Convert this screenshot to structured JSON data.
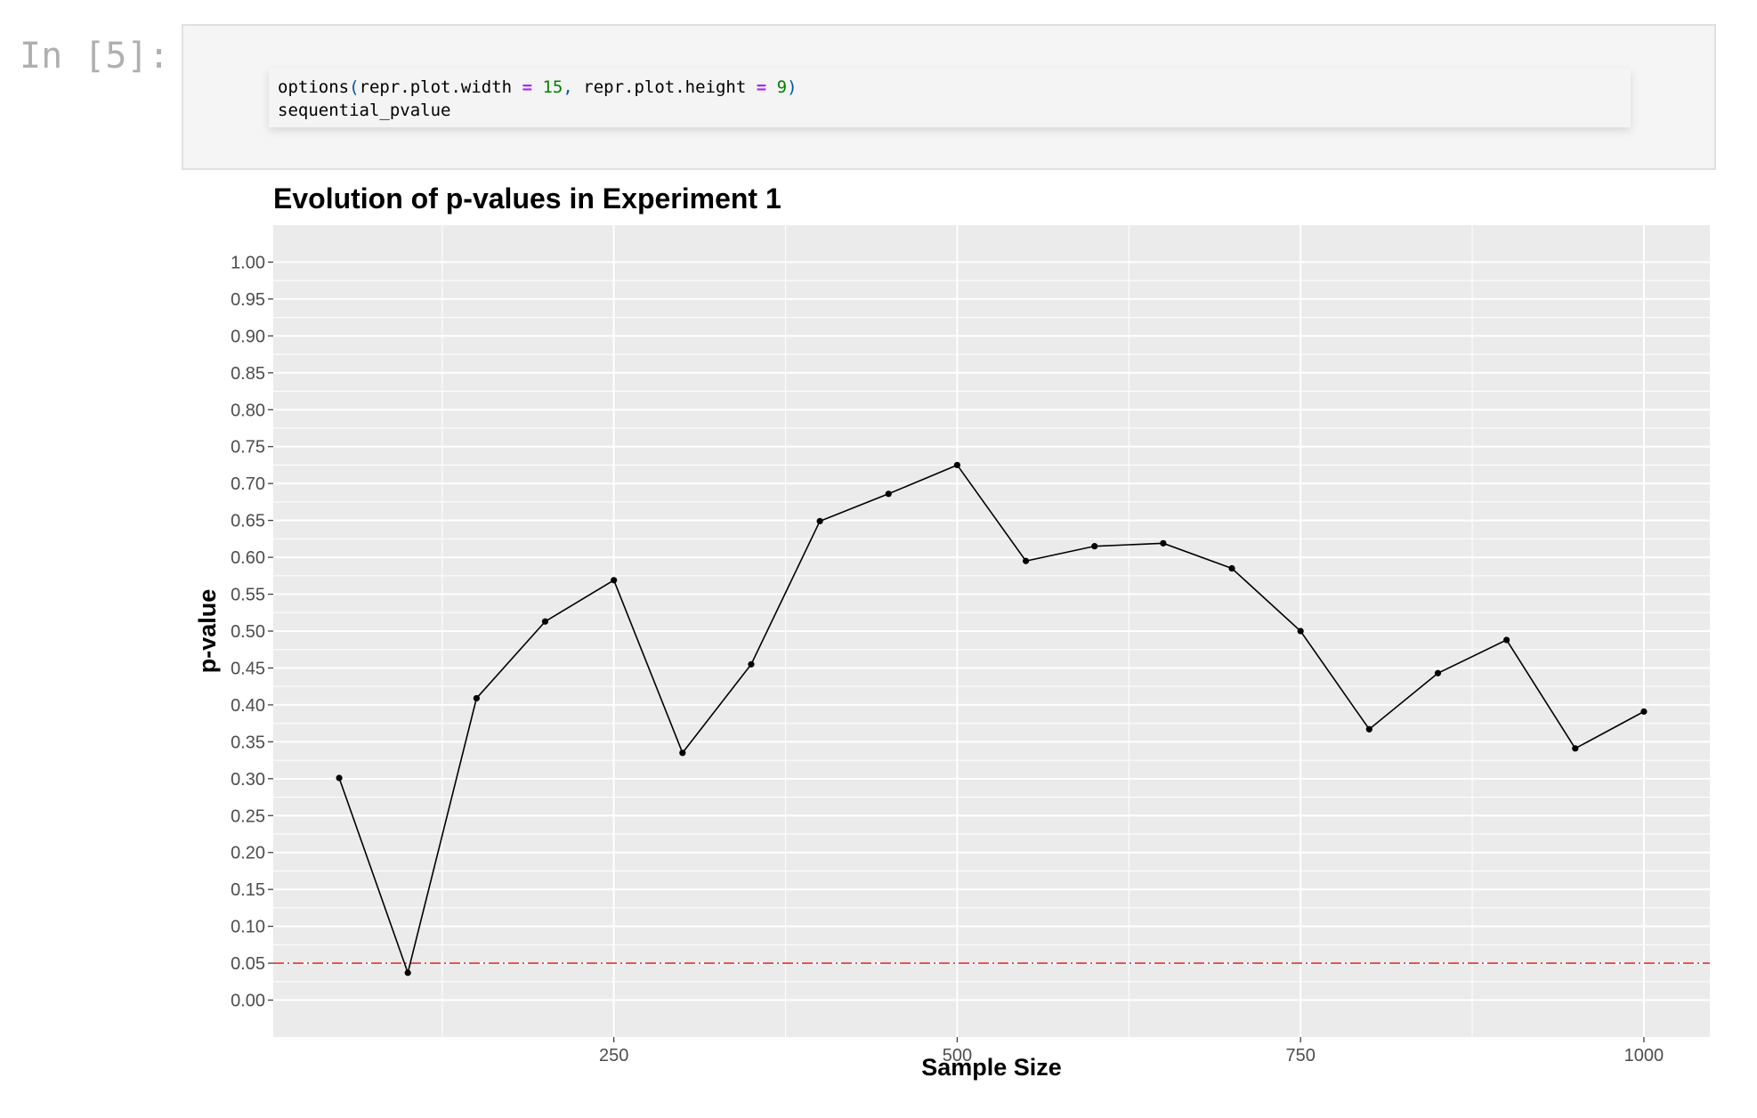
{
  "cell": {
    "prompt": "In [5]:",
    "code": {
      "line1": {
        "fn": "options",
        "paren_open": "(",
        "arg1": "repr.plot.width",
        "eq1": "=",
        "val1": "15",
        "comma": ",",
        "arg2": "repr.plot.height",
        "eq2": "=",
        "val2": "9",
        "paren_close": ")"
      },
      "line2": "sequential_pvalue"
    }
  },
  "colors": {
    "panel_bg": "#ebebeb",
    "grid": "#ffffff",
    "line": "#000000",
    "threshold": "#e03030"
  },
  "chart_data": {
    "type": "line",
    "title": "Evolution of p-values in Experiment 1",
    "xlabel": "Sample Size",
    "ylabel": "p-value",
    "xlim": [
      2,
      1048
    ],
    "ylim": [
      -0.05,
      1.05
    ],
    "xticks": [
      250,
      500,
      750,
      1000
    ],
    "yticks": [
      0.0,
      0.05,
      0.1,
      0.15,
      0.2,
      0.25,
      0.3,
      0.35,
      0.4,
      0.45,
      0.5,
      0.55,
      0.6,
      0.65,
      0.7,
      0.75,
      0.8,
      0.85,
      0.9,
      0.95,
      1.0
    ],
    "ytick_labels": [
      "0.00",
      "0.05",
      "0.10",
      "0.15",
      "0.20",
      "0.25",
      "0.30",
      "0.35",
      "0.40",
      "0.45",
      "0.50",
      "0.55",
      "0.60",
      "0.65",
      "0.70",
      "0.75",
      "0.80",
      "0.85",
      "0.90",
      "0.95",
      "1.00"
    ],
    "threshold": 0.05,
    "grid": true,
    "x": [
      50,
      100,
      150,
      200,
      250,
      300,
      350,
      400,
      450,
      500,
      550,
      600,
      650,
      700,
      750,
      800,
      850,
      900,
      950,
      1000
    ],
    "y": [
      0.301,
      0.037,
      0.409,
      0.513,
      0.569,
      0.335,
      0.455,
      0.649,
      0.686,
      0.725,
      0.595,
      0.615,
      0.619,
      0.585,
      0.5,
      0.367,
      0.443,
      0.488,
      0.341,
      0.391
    ]
  }
}
